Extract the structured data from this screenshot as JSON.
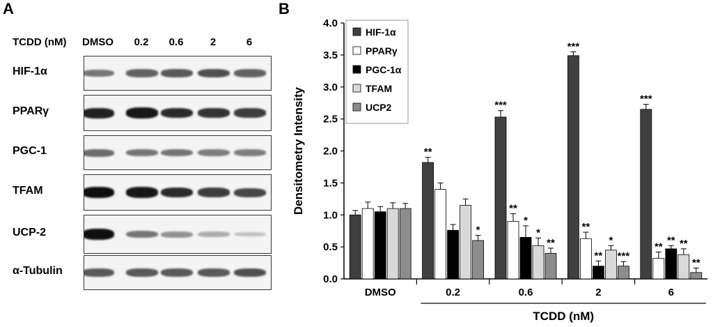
{
  "panel_a": {
    "letter": "A",
    "header_label": "TCDD (nM)",
    "lanes": [
      "DMSO",
      "0.2",
      "0.6",
      "2",
      "6"
    ],
    "blots": [
      {
        "label": "HIF-1α",
        "intensity": [
          0.45,
          0.55,
          0.6,
          0.65,
          0.55
        ]
      },
      {
        "label": "PPARγ",
        "intensity": [
          0.9,
          0.95,
          0.85,
          0.8,
          0.75
        ]
      },
      {
        "label": "PGC-1",
        "intensity": [
          0.5,
          0.45,
          0.45,
          0.4,
          0.4
        ]
      },
      {
        "label": "TFAM",
        "intensity": [
          1.0,
          0.95,
          0.85,
          0.75,
          0.7
        ]
      },
      {
        "label": "UCP-2",
        "intensity": [
          1.0,
          0.45,
          0.3,
          0.15,
          0.05
        ]
      },
      {
        "label": "α-Tubulin",
        "intensity": [
          0.6,
          0.6,
          0.6,
          0.6,
          0.65
        ]
      }
    ]
  },
  "panel_b": {
    "letter": "B"
  },
  "chart_data": {
    "type": "bar",
    "ylabel": "Densitometry Intensity",
    "xlabel": "TCDD (nM)",
    "ylim": [
      0,
      4.0
    ],
    "yticks": [
      "0.0",
      "0.5",
      "1.0",
      "1.5",
      "2.0",
      "2.5",
      "3.0",
      "3.5",
      "4.0"
    ],
    "categories": [
      "DMSO",
      "0.2",
      "0.6",
      "2",
      "6"
    ],
    "legend_position": "top-left",
    "series": [
      {
        "name": "HIF-1α",
        "color": "#404040",
        "values": [
          1.0,
          1.82,
          2.53,
          3.49,
          2.65
        ],
        "errors": [
          0.07,
          0.08,
          0.1,
          0.06,
          0.08
        ],
        "sig": [
          "",
          "**",
          "***",
          "***",
          "***"
        ]
      },
      {
        "name": "PPARγ",
        "color": "#ffffff",
        "values": [
          1.1,
          1.4,
          0.9,
          0.63,
          0.32
        ],
        "errors": [
          0.1,
          0.1,
          0.12,
          0.1,
          0.1
        ],
        "sig": [
          "",
          "",
          "**",
          "**",
          "**"
        ]
      },
      {
        "name": "PGC-1α",
        "color": "#000000",
        "values": [
          1.05,
          0.76,
          0.65,
          0.2,
          0.47
        ],
        "errors": [
          0.08,
          0.09,
          0.18,
          0.08,
          0.05
        ],
        "sig": [
          "",
          "",
          "*",
          "**",
          "**"
        ]
      },
      {
        "name": "TFAM",
        "color": "#d9d9d9",
        "values": [
          1.1,
          1.15,
          0.52,
          0.45,
          0.38
        ],
        "errors": [
          0.09,
          0.1,
          0.12,
          0.07,
          0.09
        ],
        "sig": [
          "",
          "",
          "*",
          "*",
          "**"
        ]
      },
      {
        "name": "UCP2",
        "color": "#8c8c8c",
        "values": [
          1.1,
          0.6,
          0.4,
          0.2,
          0.1
        ],
        "errors": [
          0.08,
          0.08,
          0.08,
          0.07,
          0.07
        ],
        "sig": [
          "",
          "*",
          "**",
          "***",
          "**"
        ]
      }
    ]
  }
}
